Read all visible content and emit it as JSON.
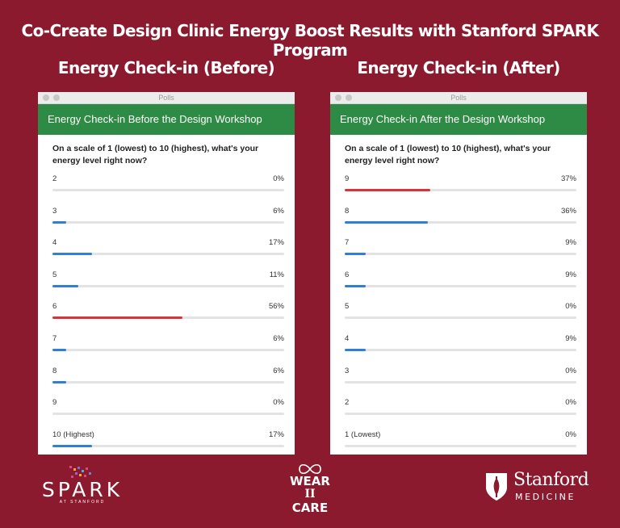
{
  "page": {
    "title": "Co-Create Design Clinic Energy Boost Results with Stanford SPARK Program",
    "colors": {
      "background": "#8c1a2e",
      "header_green": "#2e8b45",
      "bar_blue": "#2f7fd6",
      "bar_red": "#d6343a"
    }
  },
  "before": {
    "heading": "Energy Check-in (Before)",
    "window_title": "Polls",
    "poll_title": "Energy Check-in Before the Design Workshop",
    "question": "On a scale of 1 (lowest) to 10 (highest), what's your energy level right now?",
    "options": [
      {
        "label": "2",
        "pct_text": "0%",
        "value": 0,
        "highlight": false
      },
      {
        "label": "3",
        "pct_text": "6%",
        "value": 6,
        "highlight": false
      },
      {
        "label": "4",
        "pct_text": "17%",
        "value": 17,
        "highlight": false
      },
      {
        "label": "5",
        "pct_text": "11%",
        "value": 11,
        "highlight": false
      },
      {
        "label": "6",
        "pct_text": "56%",
        "value": 56,
        "highlight": true
      },
      {
        "label": "7",
        "pct_text": "6%",
        "value": 6,
        "highlight": false
      },
      {
        "label": "8",
        "pct_text": "6%",
        "value": 6,
        "highlight": false
      },
      {
        "label": "9",
        "pct_text": "0%",
        "value": 0,
        "highlight": false
      },
      {
        "label": "10 (Highest)",
        "pct_text": "17%",
        "value": 17,
        "highlight": false
      }
    ]
  },
  "after": {
    "heading": "Energy Check-in (After)",
    "window_title": "Polls",
    "poll_title": "Energy Check-in After the Design Workshop",
    "question": "On a scale of 1 (lowest) to 10 (highest), what's your energy level right now?",
    "options": [
      {
        "label": "9",
        "pct_text": "37%",
        "value": 37,
        "highlight": true
      },
      {
        "label": "8",
        "pct_text": "36%",
        "value": 36,
        "highlight": false
      },
      {
        "label": "7",
        "pct_text": "9%",
        "value": 9,
        "highlight": false
      },
      {
        "label": "6",
        "pct_text": "9%",
        "value": 9,
        "highlight": false
      },
      {
        "label": "5",
        "pct_text": "0%",
        "value": 0,
        "highlight": false
      },
      {
        "label": "4",
        "pct_text": "9%",
        "value": 9,
        "highlight": false
      },
      {
        "label": "3",
        "pct_text": "0%",
        "value": 0,
        "highlight": false
      },
      {
        "label": "2",
        "pct_text": "0%",
        "value": 0,
        "highlight": false
      },
      {
        "label": "1 (Lowest)",
        "pct_text": "0%",
        "value": 0,
        "highlight": false
      }
    ]
  },
  "logos": {
    "spark": {
      "name": "SPARK",
      "sub": "AT STANFORD"
    },
    "wear": {
      "line1": "WEAR",
      "line2": "II",
      "line3": "CARE"
    },
    "stanford": {
      "line1": "Stanford",
      "line2": "MEDICINE"
    }
  }
}
